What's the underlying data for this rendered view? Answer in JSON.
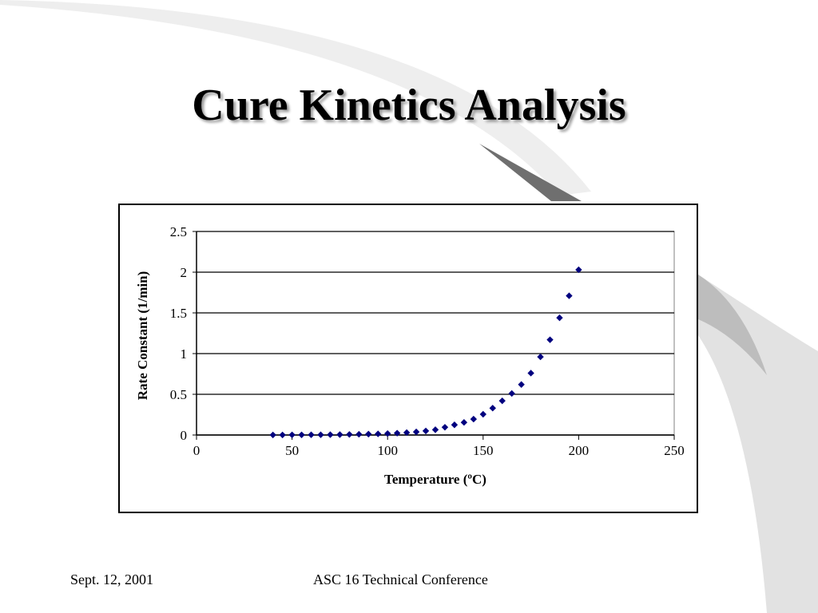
{
  "slide": {
    "title": "Cure Kinetics Analysis",
    "footer_date": "Sept. 12, 2001",
    "footer_conference": "ASC 16 Technical Conference"
  },
  "colors": {
    "marker": "#00007f",
    "gridline": "#000000",
    "background_swoosh": "#d9d9d9"
  },
  "chart_data": {
    "type": "scatter",
    "xlabel": "Temperature (ºC)",
    "ylabel": "Rate Constant (1/min)",
    "xlim": [
      0,
      250
    ],
    "ylim": [
      0,
      2.5
    ],
    "xticks": [
      "0",
      "50",
      "100",
      "150",
      "200",
      "250"
    ],
    "yticks": [
      "0",
      "0.5",
      "1",
      "1.5",
      "2",
      "2.5"
    ],
    "grid": "horizontal",
    "legend": "none",
    "x": [
      40,
      45,
      50,
      55,
      60,
      65,
      70,
      75,
      80,
      85,
      90,
      95,
      100,
      105,
      110,
      115,
      120,
      125,
      130,
      135,
      140,
      145,
      150,
      155,
      160,
      165,
      170,
      175,
      180,
      185,
      190,
      195,
      200
    ],
    "y": [
      0.001,
      0.001,
      0.002,
      0.002,
      0.003,
      0.003,
      0.004,
      0.005,
      0.007,
      0.009,
      0.011,
      0.014,
      0.018,
      0.023,
      0.03,
      0.038,
      0.05,
      0.065,
      0.095,
      0.125,
      0.155,
      0.195,
      0.255,
      0.33,
      0.42,
      0.51,
      0.62,
      0.76,
      0.96,
      1.17,
      1.44,
      1.71,
      2.03
    ]
  }
}
